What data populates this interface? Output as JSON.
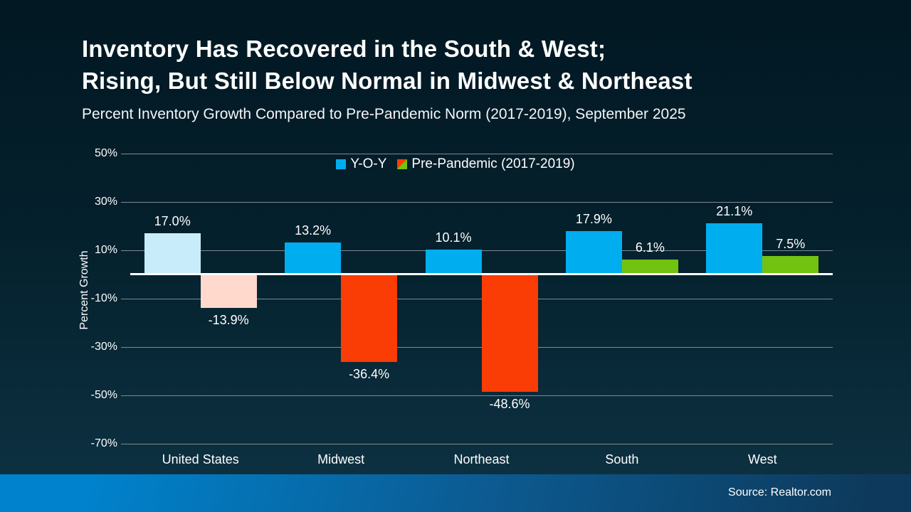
{
  "page": {
    "title_line1": "Inventory Has Recovered in the South & West;",
    "title_line2": "Rising, But Still Below Normal in Midwest & Northeast",
    "subtitle": "Percent Inventory Growth Compared to Pre-Pandemic Norm (2017-2019), September 2025",
    "source": "Source: Realtor.com"
  },
  "chart_data": {
    "type": "bar",
    "title": "Inventory Has Recovered in the South & West; Rising, But Still Below Normal in Midwest & Northeast",
    "subtitle": "Percent Inventory Growth Compared to Pre-Pandemic Norm (2017-2019), September 2025",
    "categories": [
      "United States",
      "Midwest",
      "Northeast",
      "South",
      "West"
    ],
    "series": [
      {
        "name": "Y-O-Y",
        "values": [
          17.0,
          13.2,
          10.1,
          17.9,
          21.1
        ],
        "labels": [
          "17.0%",
          "13.2%",
          "10.1%",
          "17.9%",
          "21.1%"
        ]
      },
      {
        "name": "Pre-Pandemic (2017-2019)",
        "values": [
          -13.9,
          -36.4,
          -48.6,
          6.1,
          7.5
        ],
        "labels": [
          "-13.9%",
          "-36.4%",
          "-48.6%",
          "6.1%",
          "7.5%"
        ]
      }
    ],
    "xlabel": "",
    "ylabel": "Percent Growth",
    "ylim": [
      -70,
      50
    ],
    "yticks": [
      50,
      30,
      10,
      -10,
      -30,
      -50,
      -70
    ],
    "ytick_labels": [
      "50%",
      "30%",
      "10%",
      "-10%",
      "-30%",
      "-50%",
      "-70%"
    ],
    "grid": true,
    "legend_position": "top-center",
    "muted_categories": [
      "United States"
    ],
    "colors": {
      "yoy": "#00aeef",
      "yoy_muted": "#c9ecfb",
      "pre_negative": "#fa3c05",
      "pre_negative_muted": "#fed9cc",
      "pre_positive": "#72c212",
      "gridline": "#7f8a91",
      "zero_line": "#ffffff",
      "footer_left": "#0082cc",
      "footer_right": "#0d3a5c"
    },
    "source": "Source: Realtor.com"
  }
}
